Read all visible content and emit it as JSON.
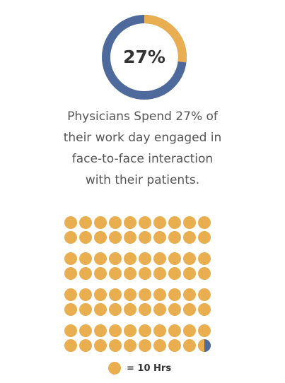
{
  "headline_stat": {
    "percent": 27,
    "label": "27%"
  },
  "caption_lines": [
    "Physicians Spend 27% of",
    "their work day engaged in",
    "face-to-face interaction",
    "with their patients."
  ],
  "dot_grid": {
    "total_dots": 80,
    "filled_dots_full": 79,
    "last_dot_fraction_orange": 0.5,
    "rows": 8,
    "columns": 10
  },
  "legend": {
    "label": "= 10 Hrs"
  },
  "colors": {
    "orange": "#E8AE4F",
    "blue": "#4E6A9C",
    "text_dark": "#333333",
    "text_gray": "#555555"
  }
}
